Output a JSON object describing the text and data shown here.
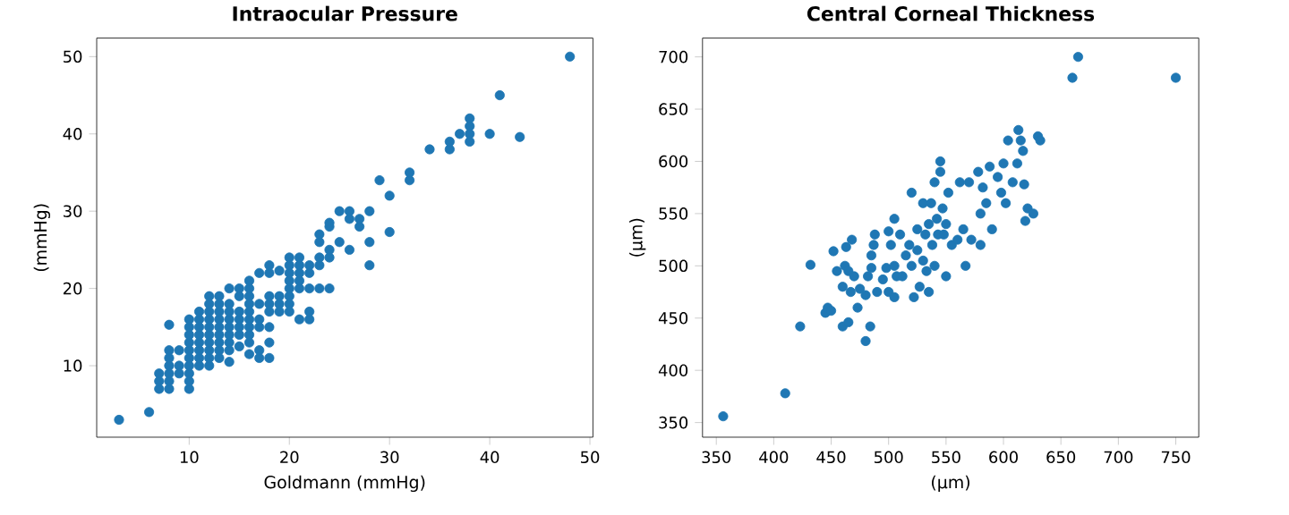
{
  "chart_data": [
    {
      "type": "scatter",
      "title": "Intraocular Pressure",
      "xlabel": "Goldmann (mmHg)",
      "ylabel": "(mmHg)",
      "marker": "circle",
      "xlim": [
        0.77,
        50.3
      ],
      "ylim": [
        0.75,
        52.4
      ],
      "xticks": [
        10,
        20,
        30,
        40,
        50
      ],
      "yticks": [
        10,
        20,
        30,
        40,
        50
      ],
      "series": [
        {
          "color": "#1f77b4",
          "x": [
            3,
            6,
            7,
            7,
            7,
            8,
            8,
            8,
            8,
            8,
            8,
            8,
            9,
            9,
            9,
            10,
            10,
            10,
            10,
            10,
            10,
            10,
            10,
            10,
            10,
            11,
            11,
            11,
            11,
            11,
            11,
            11,
            11,
            12,
            12,
            12,
            12,
            12,
            12,
            12,
            12,
            12,
            12,
            13,
            13,
            13,
            13,
            13,
            13,
            13,
            13,
            13,
            14,
            14,
            14,
            14,
            14,
            14,
            14,
            14,
            14,
            15,
            15,
            15,
            15,
            15,
            15,
            15,
            16,
            16,
            16,
            16,
            16,
            16,
            16,
            16,
            16,
            16,
            17,
            17,
            17,
            17,
            17,
            17,
            18,
            18,
            18,
            18,
            18,
            18,
            18,
            18,
            19,
            19,
            19,
            19,
            20,
            20,
            20,
            20,
            20,
            20,
            20,
            20,
            21,
            21,
            21,
            21,
            21,
            21,
            22,
            22,
            22,
            22,
            22,
            23,
            23,
            23,
            23,
            23,
            24,
            24,
            24,
            24,
            24,
            25,
            25,
            26,
            26,
            26,
            27,
            27,
            28,
            28,
            28,
            29,
            30,
            30,
            32,
            32,
            34,
            36,
            36,
            37,
            38,
            38,
            38,
            38,
            40,
            41,
            43,
            48
          ],
          "values": [
            3,
            4,
            7,
            8,
            9,
            7,
            8,
            9,
            10,
            11,
            12,
            15.3,
            9,
            10,
            12,
            7,
            8,
            9,
            10,
            11,
            12,
            13,
            14,
            15,
            16,
            10,
            11,
            12,
            13,
            14,
            15,
            16,
            17,
            10,
            11,
            12,
            13,
            14,
            15,
            16,
            17,
            18,
            19,
            11,
            12,
            13,
            14,
            15,
            16,
            17,
            18,
            19,
            10.5,
            12,
            13,
            14,
            15,
            16,
            17,
            18,
            20,
            12.5,
            14,
            15,
            16,
            17,
            19,
            20,
            11.5,
            13,
            14,
            15,
            16,
            17,
            18,
            19,
            20,
            21,
            11,
            12,
            15,
            16,
            18,
            22,
            11,
            13,
            15,
            17,
            18,
            19,
            22,
            23,
            17,
            18,
            19,
            22.3,
            17,
            18,
            19,
            20,
            21,
            22,
            23,
            24,
            16,
            20,
            21,
            22,
            23,
            24,
            16,
            17,
            20,
            22,
            23,
            20,
            23,
            24,
            26,
            27,
            20,
            24,
            25,
            28,
            28.5,
            26,
            30,
            25,
            29,
            30,
            28,
            29,
            23,
            26,
            30,
            34,
            27.3,
            32,
            34,
            35,
            38,
            38,
            39,
            40,
            39,
            40,
            41,
            42,
            40,
            45,
            39.6,
            50
          ]
        }
      ]
    },
    {
      "type": "scatter",
      "title": "Central Corneal Thickness",
      "xlabel": "(μm)",
      "ylabel": "(μm)",
      "marker": "circle",
      "xlim": [
        338,
        770
      ],
      "ylim": [
        336,
        718
      ],
      "xticks": [
        350,
        400,
        450,
        500,
        550,
        600,
        650,
        700,
        750
      ],
      "yticks": [
        350,
        400,
        450,
        500,
        550,
        600,
        650,
        700
      ],
      "series": [
        {
          "color": "#1f77b4",
          "x": [
            356,
            410,
            423,
            432,
            445,
            447,
            450,
            452,
            455,
            460,
            460,
            462,
            463,
            465,
            465,
            467,
            468,
            470,
            473,
            475,
            480,
            480,
            482,
            484,
            485,
            485,
            487,
            488,
            490,
            495,
            498,
            500,
            500,
            502,
            505,
            505,
            505,
            507,
            510,
            512,
            515,
            518,
            520,
            520,
            522,
            525,
            525,
            527,
            530,
            530,
            532,
            533,
            535,
            535,
            537,
            538,
            540,
            540,
            542,
            543,
            545,
            545,
            547,
            548,
            550,
            550,
            552,
            555,
            560,
            562,
            565,
            567,
            570,
            572,
            578,
            580,
            580,
            582,
            585,
            588,
            590,
            595,
            598,
            600,
            602,
            604,
            608,
            612,
            613,
            615,
            617,
            618,
            619,
            621,
            626,
            630,
            632,
            660,
            665,
            750
          ],
          "values": [
            356,
            378,
            442,
            501,
            455,
            460,
            457,
            514,
            495,
            442,
            480,
            500,
            518,
            446,
            495,
            475,
            525,
            490,
            460,
            478,
            428,
            472,
            490,
            442,
            498,
            510,
            520,
            530,
            475,
            487,
            498,
            533,
            475,
            520,
            545,
            500,
            470,
            490,
            530,
            490,
            510,
            520,
            570,
            500,
            470,
            535,
            515,
            480,
            560,
            505,
            530,
            495,
            475,
            540,
            560,
            520,
            580,
            500,
            545,
            530,
            590,
            600,
            555,
            530,
            540,
            490,
            570,
            520,
            525,
            580,
            535,
            500,
            580,
            525,
            590,
            520,
            550,
            575,
            560,
            595,
            535,
            585,
            570,
            598,
            560,
            620,
            580,
            598,
            630,
            620,
            610,
            578,
            543,
            555,
            550,
            624,
            620,
            680,
            700,
            680
          ]
        }
      ]
    }
  ]
}
